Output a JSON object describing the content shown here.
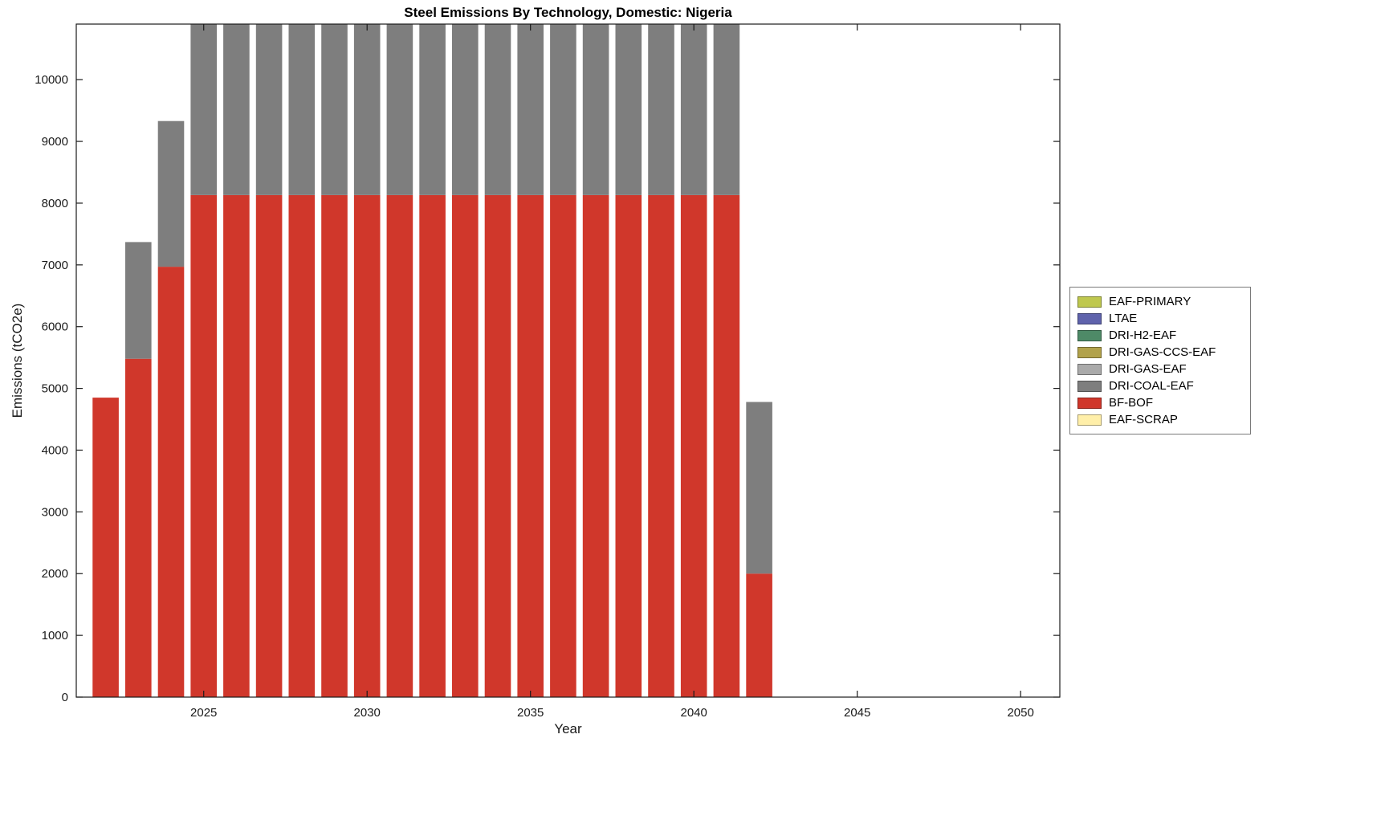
{
  "chart_data": {
    "type": "bar",
    "stacked": true,
    "title": "Steel Emissions By Technology, Domestic: Nigeria",
    "xlabel": "Year",
    "ylabel": "Emissions (tCO2e)",
    "xlim": [
      2021.1,
      2051.2
    ],
    "ylim": [
      0,
      10900
    ],
    "xticks": [
      2025,
      2030,
      2035,
      2040,
      2045,
      2050
    ],
    "yticks": [
      0,
      1000,
      2000,
      3000,
      4000,
      5000,
      6000,
      7000,
      8000,
      9000,
      10000
    ],
    "grid": false,
    "legend_position": "right-outside",
    "bar_width_fraction": 0.8,
    "years": [
      2022,
      2023,
      2024,
      2025,
      2026,
      2027,
      2028,
      2029,
      2030,
      2031,
      2032,
      2033,
      2034,
      2035,
      2036,
      2037,
      2038,
      2039,
      2040,
      2041,
      2042
    ],
    "series": [
      {
        "name": "EAF-PRIMARY",
        "color": "#BFC84F",
        "values": [
          0,
          0,
          0,
          0,
          0,
          0,
          0,
          0,
          0,
          0,
          0,
          0,
          0,
          0,
          0,
          0,
          0,
          0,
          0,
          0,
          0
        ]
      },
      {
        "name": "LTAE",
        "color": "#5F63AC",
        "values": [
          0,
          0,
          0,
          0,
          0,
          0,
          0,
          0,
          0,
          0,
          0,
          0,
          0,
          0,
          0,
          0,
          0,
          0,
          0,
          0,
          0
        ]
      },
      {
        "name": "DRI-H2-EAF",
        "color": "#4E8A67",
        "values": [
          0,
          0,
          0,
          0,
          0,
          0,
          0,
          0,
          0,
          0,
          0,
          0,
          0,
          0,
          0,
          0,
          0,
          0,
          0,
          0,
          0
        ]
      },
      {
        "name": "DRI-GAS-CCS-EAF",
        "color": "#B2A24B",
        "values": [
          0,
          0,
          0,
          0,
          0,
          0,
          0,
          0,
          0,
          0,
          0,
          0,
          0,
          0,
          0,
          0,
          0,
          0,
          0,
          0,
          0
        ]
      },
      {
        "name": "DRI-GAS-EAF",
        "color": "#AAAAAA",
        "values": [
          0,
          0,
          0,
          0,
          0,
          0,
          0,
          0,
          0,
          0,
          0,
          0,
          0,
          0,
          0,
          0,
          0,
          0,
          0,
          0,
          0
        ]
      },
      {
        "name": "DRI-COAL-EAF",
        "color": "#7E7E7E",
        "values": [
          0,
          1890,
          2360,
          3000,
          3000,
          3000,
          3000,
          3000,
          3000,
          3000,
          3000,
          3000,
          3000,
          3000,
          3000,
          3000,
          3000,
          3000,
          3000,
          3000,
          2780
        ]
      },
      {
        "name": "BF-BOF",
        "color": "#D0372B",
        "values": [
          4850,
          5480,
          6970,
          8130,
          8130,
          8130,
          8130,
          8130,
          8130,
          8130,
          8130,
          8130,
          8130,
          8130,
          8130,
          8130,
          8130,
          8130,
          8130,
          8130,
          2000
        ]
      },
      {
        "name": "EAF-SCRAP",
        "color": "#FFEFA9",
        "values": [
          0,
          0,
          0,
          0,
          0,
          0,
          0,
          0,
          0,
          0,
          0,
          0,
          0,
          0,
          0,
          0,
          0,
          0,
          0,
          0,
          0
        ]
      }
    ],
    "stack_note": "stacked bottom-to-top in reverse legend order; bars 2025-2041 are clipped at the top of the axes"
  }
}
